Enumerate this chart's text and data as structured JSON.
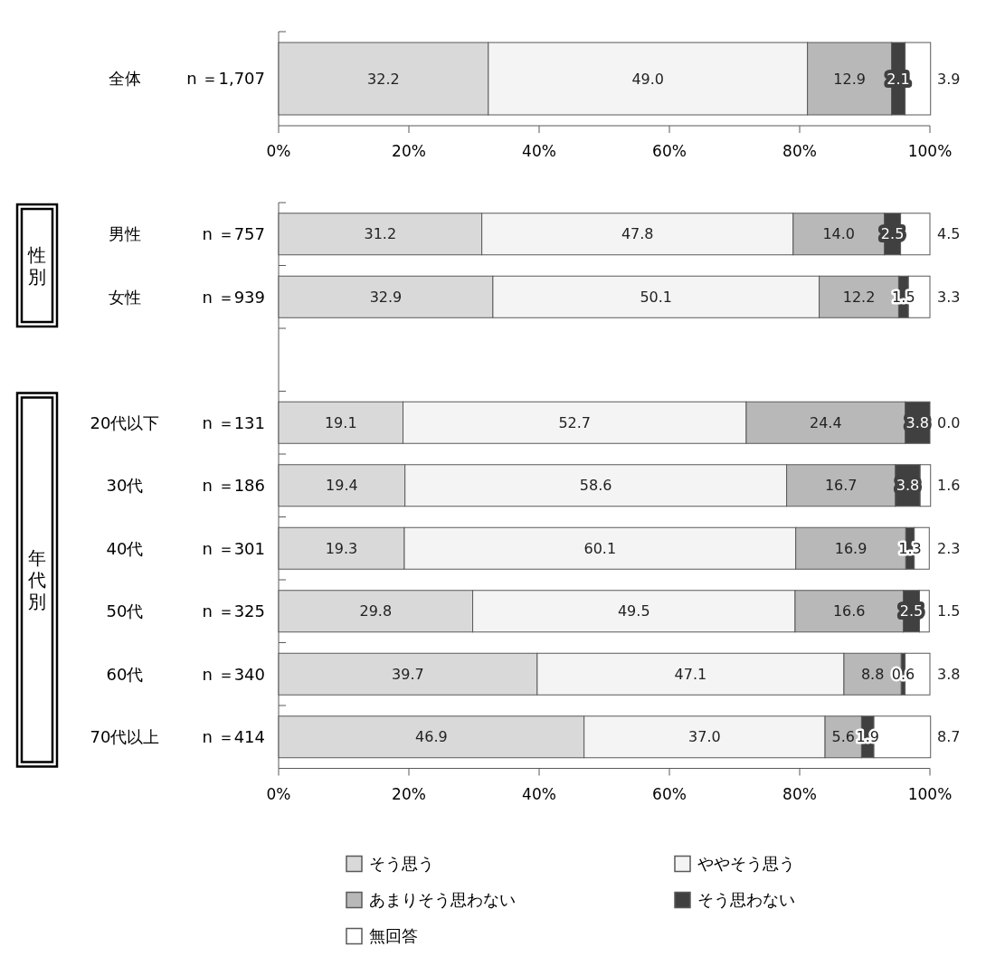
{
  "chart_data": [
    {
      "type": "bar",
      "orientation": "horizontal",
      "stacked": true,
      "categories": [
        "全体"
      ],
      "series": [
        {
          "color": "#d9d9d9",
          "values": [
            32.2
          ],
          "value_labels": [
            "32.2"
          ]
        },
        {
          "color": "#f4f4f4",
          "values": [
            49.0
          ],
          "value_labels": [
            "49.0"
          ]
        },
        {
          "color": "#b8b8b8",
          "values": [
            12.9
          ],
          "value_labels": [
            "12.9"
          ]
        },
        {
          "color": "#404040",
          "values": [
            2.1
          ],
          "value_labels": [
            "2.1"
          ]
        },
        {
          "color": "#ffffff",
          "values": [
            3.9
          ],
          "value_labels": [
            "3.9"
          ]
        }
      ],
      "xlim": [
        0,
        100
      ],
      "xticks": [
        {
          "value": 0,
          "label": "0%"
        },
        {
          "value": 20,
          "label": "20%"
        },
        {
          "value": 40,
          "label": "40%"
        },
        {
          "value": 60,
          "label": "60%"
        },
        {
          "value": 80,
          "label": "80%"
        },
        {
          "value": 100,
          "label": "100%"
        }
      ],
      "annotations": [
        "n ＝1,707"
      ]
    },
    {
      "type": "bar",
      "orientation": "horizontal",
      "stacked": true,
      "categories": [
        "男性",
        "女性",
        null,
        "20代以下",
        "30代",
        "40代",
        "50代",
        "60代",
        "70代以上"
      ],
      "series": [
        {
          "name": "そう思う",
          "color": "#d9d9d9",
          "values": [
            31.2,
            32.9,
            null,
            19.1,
            19.4,
            19.3,
            29.8,
            39.7,
            46.9
          ],
          "value_labels": [
            "31.2",
            "32.9",
            null,
            "19.1",
            "19.4",
            "19.3",
            "29.8",
            "39.7",
            "46.9"
          ]
        },
        {
          "name": "ややそう思う",
          "color": "#f4f4f4",
          "values": [
            47.8,
            50.1,
            null,
            52.7,
            58.6,
            60.1,
            49.5,
            47.1,
            37.0
          ],
          "value_labels": [
            "47.8",
            "50.1",
            null,
            "52.7",
            "58.6",
            "60.1",
            "49.5",
            "47.1",
            "37.0"
          ]
        },
        {
          "name": "あまりそう思わない",
          "color": "#b8b8b8",
          "values": [
            14.0,
            12.2,
            null,
            24.4,
            16.7,
            16.9,
            16.6,
            8.8,
            5.6
          ],
          "value_labels": [
            "14.0",
            "12.2",
            null,
            "24.4",
            "16.7",
            "16.9",
            "16.6",
            "8.8",
            "5.6"
          ]
        },
        {
          "name": "そう思わない",
          "color": "#404040",
          "values": [
            2.5,
            1.5,
            null,
            3.8,
            3.8,
            1.3,
            2.5,
            0.6,
            1.9
          ],
          "value_labels": [
            "2.5",
            "1.5",
            null,
            "3.8",
            "3.8",
            "1.3",
            "2.5",
            "0.6",
            "1.9"
          ]
        },
        {
          "name": "無回答",
          "color": "#ffffff",
          "values": [
            4.5,
            3.3,
            null,
            0.0,
            1.6,
            2.3,
            1.5,
            3.8,
            8.7
          ],
          "value_labels": [
            "4.5",
            "3.3",
            null,
            "0.0",
            "1.6",
            "2.3",
            "1.5",
            "3.8",
            "8.7"
          ]
        }
      ],
      "xlim": [
        0,
        100
      ],
      "xticks": [
        {
          "value": 0,
          "label": "0%"
        },
        {
          "value": 20,
          "label": "20%"
        },
        {
          "value": 40,
          "label": "40%"
        },
        {
          "value": 60,
          "label": "60%"
        },
        {
          "value": 80,
          "label": "80%"
        },
        {
          "value": 100,
          "label": "100%"
        }
      ],
      "legend": "bottom",
      "annotations": [
        "性別",
        "年代別",
        "n ＝757",
        "n ＝939",
        "n ＝131",
        "n ＝186",
        "n ＝301",
        "n ＝325",
        "n ＝340",
        "n ＝414"
      ]
    }
  ]
}
